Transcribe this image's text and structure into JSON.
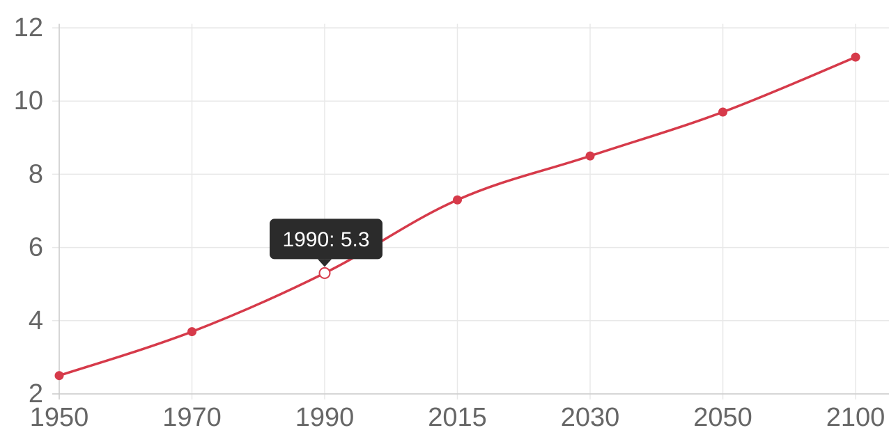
{
  "chart_data": {
    "type": "line",
    "categories": [
      "1950",
      "1970",
      "1990",
      "2015",
      "2030",
      "2050",
      "2100"
    ],
    "series": [
      {
        "values": [
          2.5,
          3.7,
          5.3,
          7.3,
          8.5,
          9.7,
          11.2
        ]
      }
    ],
    "ylim": [
      2,
      12
    ],
    "yticks": [
      "2",
      "4",
      "6",
      "8",
      "10",
      "12"
    ],
    "grid": true,
    "curve": "smooth",
    "colors": {
      "line": "#d63a4a",
      "point": "#d63a4a",
      "grid": "#e8e8e8",
      "axis": "#cccccc",
      "tick_text": "#666666",
      "tooltip_bg": "#2b2b2b"
    },
    "tooltip": {
      "text": "1990: 5.3",
      "category_index": 2
    }
  }
}
